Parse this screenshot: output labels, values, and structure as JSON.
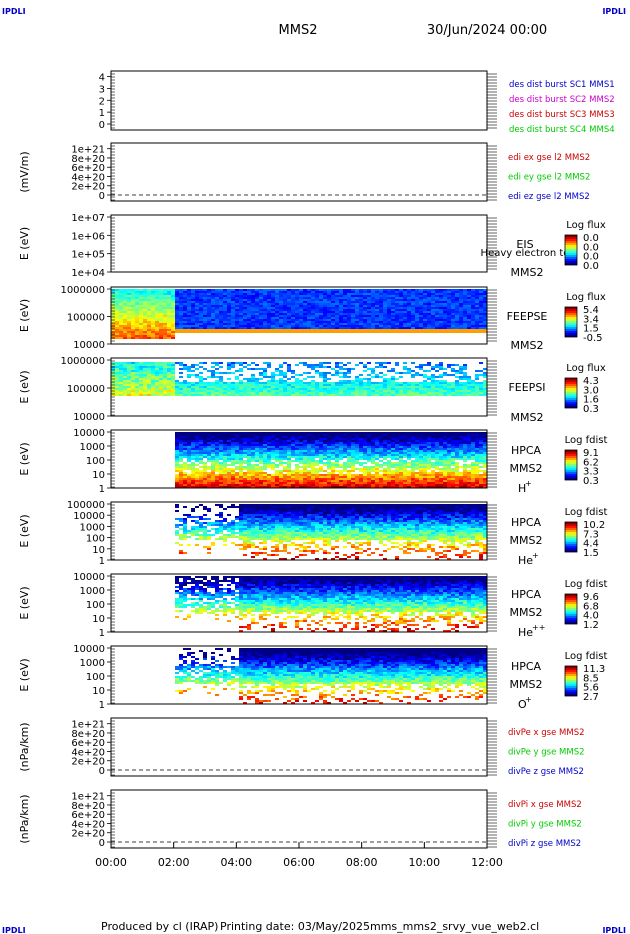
{
  "header": {
    "corner_label": "IPDLI",
    "mission": "MMS2",
    "date": "30/Jun/2024 00:00"
  },
  "footer": {
    "produced_by": "Produced by cl (IRAP)",
    "printing_date": "Printing date: 03/May/2025",
    "filename": "mms_mms2_srvy_vue_web2.cl"
  },
  "colors": {
    "blue": "#0000cc",
    "magenta": "#cc00cc",
    "red": "#cc0000",
    "green": "#00cc00"
  },
  "chart_data": [
    {
      "id": "burst",
      "type": "line",
      "ylabel": "",
      "ticks": [
        "0",
        "1",
        "2",
        "3",
        "4"
      ],
      "series": [
        {
          "name": "des dist burst SC1 MMS1",
          "color": "blue"
        },
        {
          "name": "des dist burst SC2 MMS2",
          "color": "magenta"
        },
        {
          "name": "des dist burst SC3 MMS3",
          "color": "red"
        },
        {
          "name": "des dist burst SC4 MMS4",
          "color": "green"
        }
      ]
    },
    {
      "id": "edi",
      "type": "line",
      "ylabel": "(mV/m)",
      "ticks": [
        "0",
        "2e+20",
        "4e+20",
        "6e+20",
        "8e+20",
        "1e+21"
      ],
      "series": [
        {
          "name": "edi ex gse l2 MMS2",
          "color": "red"
        },
        {
          "name": "edi ey gse l2 MMS2",
          "color": "green"
        },
        {
          "name": "edi ez gse l2 MMS2",
          "color": "blue"
        }
      ]
    },
    {
      "id": "eis",
      "type": "heatmap",
      "ylabel": "E (eV)",
      "ticks": [
        "1e+04",
        "1e+05",
        "1e+06",
        "1e+07"
      ],
      "instrument": "EIS",
      "species": "Heavy electron to",
      "spacecraft": "MMS2",
      "colorbar_title": "Log flux",
      "colorbar_values": [
        "0.0",
        "0.0",
        "0.0",
        "0.0"
      ]
    },
    {
      "id": "feepse",
      "type": "heatmap",
      "ylabel": "E (eV)",
      "ticks": [
        "10000",
        "100000",
        "1000000"
      ],
      "instrument": "FEEPSE",
      "spacecraft": "MMS2",
      "colorbar_title": "Log flux",
      "colorbar_values": [
        "5.4",
        "3.4",
        "1.5",
        "-0.5"
      ]
    },
    {
      "id": "feepsi",
      "type": "heatmap",
      "ylabel": "E (eV)",
      "ticks": [
        "10000",
        "100000",
        "1000000"
      ],
      "instrument": "FEEPSI",
      "spacecraft": "MMS2",
      "colorbar_title": "Log flux",
      "colorbar_values": [
        "4.3",
        "3.0",
        "1.6",
        "0.3"
      ]
    },
    {
      "id": "hpca-h",
      "type": "heatmap",
      "ylabel": "E (eV)",
      "ticks": [
        "1",
        "10",
        "100",
        "1000",
        "10000"
      ],
      "instrument": "HPCA",
      "spacecraft": "MMS2",
      "species": "H",
      "charge": "+",
      "colorbar_title": "Log fdist",
      "colorbar_values": [
        "9.1",
        "6.2",
        "3.3",
        "0.3"
      ]
    },
    {
      "id": "hpca-he",
      "type": "heatmap",
      "ylabel": "E (eV)",
      "ticks": [
        "1",
        "10",
        "100",
        "1000",
        "10000",
        "100000"
      ],
      "instrument": "HPCA",
      "spacecraft": "MMS2",
      "species": "He",
      "charge": "+",
      "colorbar_title": "Log fdist",
      "colorbar_values": [
        "10.2",
        "7.3",
        "4.4",
        "1.5"
      ]
    },
    {
      "id": "hpca-he2",
      "type": "heatmap",
      "ylabel": "E (eV)",
      "ticks": [
        "1",
        "10",
        "100",
        "1000",
        "10000"
      ],
      "instrument": "HPCA",
      "spacecraft": "MMS2",
      "species": "He",
      "charge": "++",
      "colorbar_title": "Log fdist",
      "colorbar_values": [
        "9.6",
        "6.8",
        "4.0",
        "1.2"
      ]
    },
    {
      "id": "hpca-o",
      "type": "heatmap",
      "ylabel": "E (eV)",
      "ticks": [
        "1",
        "10",
        "100",
        "1000",
        "10000"
      ],
      "instrument": "HPCA",
      "spacecraft": "MMS2",
      "species": "O",
      "charge": "+",
      "colorbar_title": "Log fdist",
      "colorbar_values": [
        "11.3",
        "8.5",
        "5.6",
        "2.7"
      ]
    },
    {
      "id": "divpe",
      "type": "line",
      "ylabel": "(nPa/km)",
      "ticks": [
        "0",
        "2e+20",
        "4e+20",
        "6e+20",
        "8e+20",
        "1e+21"
      ],
      "series": [
        {
          "name": "divPe x gse MMS2",
          "color": "red"
        },
        {
          "name": "divPe y gse MMS2",
          "color": "green"
        },
        {
          "name": "divPe z gse MMS2",
          "color": "blue"
        }
      ]
    },
    {
      "id": "divpi",
      "type": "line",
      "ylabel": "(nPa/km)",
      "ticks": [
        "0",
        "2e+20",
        "4e+20",
        "6e+20",
        "8e+20",
        "1e+21"
      ],
      "series": [
        {
          "name": "divPi x gse MMS2",
          "color": "red"
        },
        {
          "name": "divPi y gse MMS2",
          "color": "green"
        },
        {
          "name": "divPi z gse MMS2",
          "color": "blue"
        }
      ]
    }
  ],
  "time_axis": {
    "ticks": [
      "00:00",
      "02:00",
      "04:00",
      "06:00",
      "08:00",
      "10:00",
      "12:00"
    ]
  }
}
